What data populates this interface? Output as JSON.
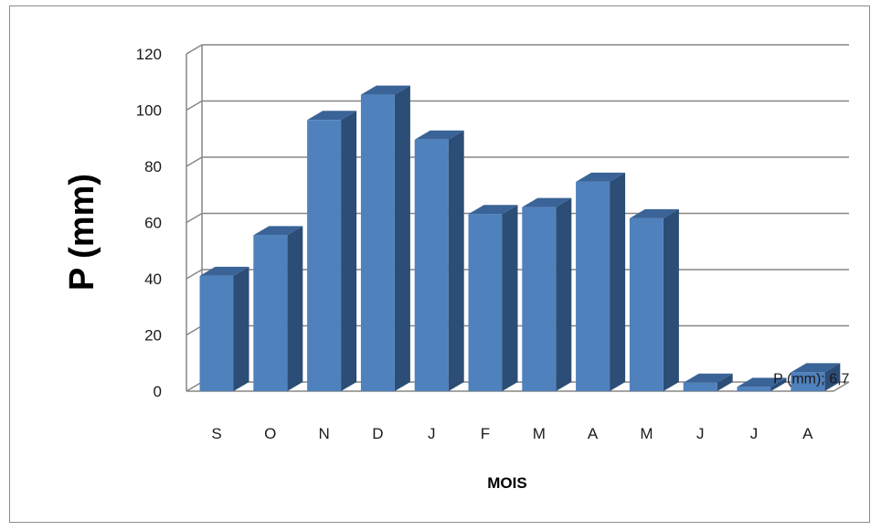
{
  "colors": {
    "bar_front": "#4f81bd",
    "bar_side": "#2c4d75",
    "bar_top": "#3a6397",
    "grid": "#868686",
    "frame": "#8c8c8c"
  },
  "chart_data": {
    "type": "bar",
    "title": "",
    "xlabel": "MOIS",
    "ylabel": "P (mm)",
    "categories": [
      "S",
      "O",
      "N",
      "D",
      "J",
      "F",
      "M",
      "A",
      "M",
      "J",
      "J",
      "A"
    ],
    "series": [
      {
        "values": [
          41,
          55.5,
          96.5,
          105.5,
          89.5,
          63,
          65.5,
          74.5,
          61.5,
          3,
          1.5,
          6.7
        ]
      }
    ],
    "ylim": [
      0,
      120
    ],
    "yticks": [
      "0",
      "20",
      "40",
      "60",
      "80",
      "100",
      "120"
    ],
    "grid": true,
    "legend": "none",
    "annotations": [
      {
        "category_index": 11,
        "text": "P (mm); 6,7"
      }
    ]
  }
}
